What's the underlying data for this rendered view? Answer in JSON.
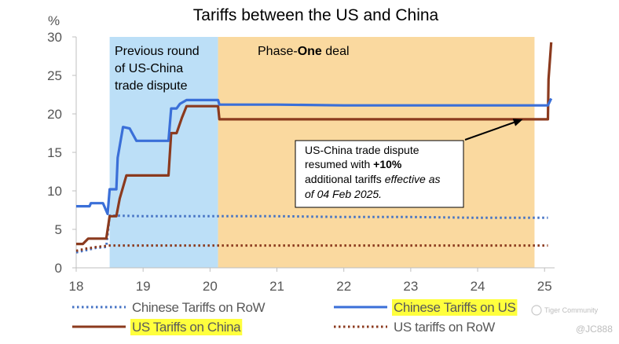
{
  "chart_data": {
    "type": "line",
    "title": "Tariffs between the US and China",
    "ylabel": "%",
    "ylim": [
      0,
      30
    ],
    "xlim": [
      18,
      25.15
    ],
    "yticks": [
      0,
      5,
      10,
      15,
      20,
      25,
      30
    ],
    "xticks": [
      18,
      19,
      20,
      21,
      22,
      23,
      24,
      25
    ],
    "xtick_labels": [
      "18",
      "19",
      "20",
      "21",
      "22",
      "23",
      "24",
      "25"
    ],
    "regions": [
      {
        "name": "Previous round of US-China trade dispute",
        "lines": [
          "Previous round",
          "of US-China",
          "trade dispute"
        ],
        "x": [
          18.5,
          20.12
        ],
        "color": "#bcdff7"
      },
      {
        "name": "Phase-One deal",
        "label_prefix": "Phase-",
        "label_bold": "One",
        "label_suffix": " deal",
        "x": [
          20.12,
          24.85
        ],
        "color": "#fad99f"
      }
    ],
    "series": [
      {
        "name": "Chinese Tariffs on RoW",
        "color": "#4472c4",
        "style": "dotted",
        "points": [
          [
            18.0,
            2.0
          ],
          [
            18.15,
            2.3
          ],
          [
            18.3,
            2.6
          ],
          [
            18.45,
            2.7
          ],
          [
            18.5,
            6.8
          ],
          [
            19.0,
            6.7
          ],
          [
            20.0,
            6.7
          ],
          [
            21.0,
            6.7
          ],
          [
            22.0,
            6.6
          ],
          [
            23.0,
            6.6
          ],
          [
            24.0,
            6.5
          ],
          [
            25.05,
            6.5
          ]
        ]
      },
      {
        "name": "Chinese Tariffs on US",
        "color": "#3a6fd8",
        "style": "solid",
        "highlight": true,
        "points": [
          [
            18.0,
            8.0
          ],
          [
            18.2,
            8.0
          ],
          [
            18.22,
            8.4
          ],
          [
            18.4,
            8.4
          ],
          [
            18.47,
            7.0
          ],
          [
            18.5,
            10.2
          ],
          [
            18.6,
            10.2
          ],
          [
            18.62,
            14.3
          ],
          [
            18.7,
            18.3
          ],
          [
            18.8,
            18.1
          ],
          [
            18.9,
            16.5
          ],
          [
            19.0,
            16.5
          ],
          [
            19.38,
            16.5
          ],
          [
            19.42,
            20.7
          ],
          [
            19.5,
            20.7
          ],
          [
            19.55,
            21.3
          ],
          [
            19.65,
            21.8
          ],
          [
            19.75,
            21.8
          ],
          [
            20.12,
            21.8
          ],
          [
            20.14,
            21.2
          ],
          [
            21.0,
            21.2
          ],
          [
            22.0,
            21.1
          ],
          [
            23.0,
            21.1
          ],
          [
            24.0,
            21.1
          ],
          [
            25.05,
            21.1
          ],
          [
            25.1,
            22.0
          ]
        ]
      },
      {
        "name": "US Tariffs on China",
        "color": "#8b3a1e",
        "style": "solid",
        "highlight": true,
        "points": [
          [
            18.0,
            3.1
          ],
          [
            18.1,
            3.1
          ],
          [
            18.18,
            3.8
          ],
          [
            18.45,
            3.8
          ],
          [
            18.5,
            6.7
          ],
          [
            18.6,
            6.7
          ],
          [
            18.65,
            9.0
          ],
          [
            18.75,
            12.0
          ],
          [
            19.0,
            12.0
          ],
          [
            19.38,
            12.0
          ],
          [
            19.42,
            17.5
          ],
          [
            19.5,
            17.5
          ],
          [
            19.58,
            19.5
          ],
          [
            19.65,
            21.0
          ],
          [
            19.75,
            21.0
          ],
          [
            20.12,
            21.0
          ],
          [
            20.14,
            19.3
          ],
          [
            21.0,
            19.3
          ],
          [
            22.0,
            19.3
          ],
          [
            23.0,
            19.3
          ],
          [
            24.0,
            19.3
          ],
          [
            25.05,
            19.3
          ],
          [
            25.06,
            24.5
          ],
          [
            25.1,
            29.3
          ]
        ]
      },
      {
        "name": "US tariffs on RoW",
        "color": "#8b3a1e",
        "style": "dotted",
        "points": [
          [
            18.0,
            2.2
          ],
          [
            18.15,
            2.5
          ],
          [
            18.3,
            2.7
          ],
          [
            18.5,
            2.9
          ],
          [
            19.0,
            2.9
          ],
          [
            20.0,
            2.9
          ],
          [
            21.0,
            2.9
          ],
          [
            22.0,
            2.9
          ],
          [
            23.0,
            2.9
          ],
          [
            24.0,
            2.9
          ],
          [
            25.05,
            2.9
          ]
        ]
      }
    ],
    "annotation": {
      "line1": "US-China trade dispute",
      "line2_prefix": "resumed with ",
      "line2_bold": "+10%",
      "line3_prefix": "additional tariffs ",
      "line3_italic": "effective as",
      "line4_italic": "of 04 Feb 2025.",
      "arrow_to": [
        24.7,
        19.3
      ]
    },
    "legend": [
      {
        "label": "Chinese Tariffs on RoW",
        "highlight": false
      },
      {
        "label": "Chinese Tariffs on US",
        "highlight": true
      },
      {
        "label": "US Tariffs on China",
        "highlight": true
      },
      {
        "label": "US tariffs on RoW",
        "highlight": false
      }
    ]
  },
  "watermark": {
    "brand": "Tiger Community",
    "handle": "@JC888"
  },
  "colors": {
    "axis": "#bfbfbf",
    "highlight": "#ffff3d",
    "tick_text": "#555555"
  }
}
